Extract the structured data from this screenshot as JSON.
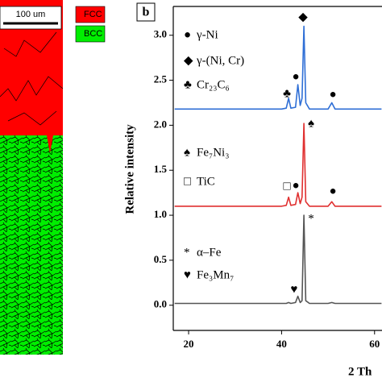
{
  "map": {
    "scale_bar": "100 um",
    "legend": [
      {
        "label": "FCC",
        "color": "#ff0000"
      },
      {
        "label": "BCC",
        "color": "#00ee00"
      }
    ]
  },
  "chart_data": {
    "type": "line",
    "panel_label": "b",
    "x_label": "2 Th",
    "y_label": "Relative intensity",
    "x": [
      17,
      40,
      41,
      41.5,
      42,
      43,
      43.5,
      44,
      44.4,
      44.8,
      45.2,
      46,
      50,
      50.8,
      51.5,
      61.5
    ],
    "series": [
      {
        "color": "#555555",
        "values": [
          0.02,
          0.02,
          0.02,
          0.03,
          0.02,
          0.03,
          0.1,
          0.03,
          0.05,
          1.0,
          0.05,
          0.02,
          0.02,
          0.03,
          0.02,
          0.02
        ]
      },
      {
        "color": "#e03030",
        "values": [
          1.1,
          1.1,
          1.11,
          1.2,
          1.11,
          1.12,
          1.25,
          1.13,
          1.2,
          2.02,
          1.15,
          1.1,
          1.1,
          1.15,
          1.1,
          1.1
        ]
      },
      {
        "color": "#2f6fd6",
        "values": [
          2.18,
          2.18,
          2.19,
          2.3,
          2.19,
          2.2,
          2.45,
          2.22,
          2.3,
          3.1,
          2.25,
          2.18,
          2.18,
          2.25,
          2.18,
          2.18
        ]
      }
    ],
    "xlim": [
      16.7,
      61.6
    ],
    "xticks": [
      20,
      40,
      60
    ],
    "ylim": [
      -0.28,
      3.32
    ],
    "yticks": [
      {
        "value": 0,
        "label": "0.0"
      },
      0.5,
      {
        "value": 1,
        "label": "1.0"
      },
      1.5,
      {
        "value": 2,
        "label": "2.0"
      },
      2.5,
      {
        "value": 3,
        "label": "3.0"
      }
    ],
    "legend_entries": [
      {
        "symbol": "●",
        "label": "γ-Ni"
      },
      {
        "symbol": "◆",
        "label": "γ-(Ni, Cr)"
      },
      {
        "symbol": "♣",
        "label": "Cr₂₃C₆"
      },
      {
        "symbol": "♠",
        "label": "Fe₇Ni₃"
      },
      {
        "symbol": "□",
        "label": "TiC"
      },
      {
        "symbol": "*",
        "label": "α–Fe"
      },
      {
        "symbol": "♥",
        "label": "Fe₃Mn₇"
      }
    ],
    "peak_markers": [
      "◆",
      "●",
      "♣",
      "●",
      "♠",
      "□",
      "●",
      "●",
      "*",
      "♥"
    ]
  }
}
